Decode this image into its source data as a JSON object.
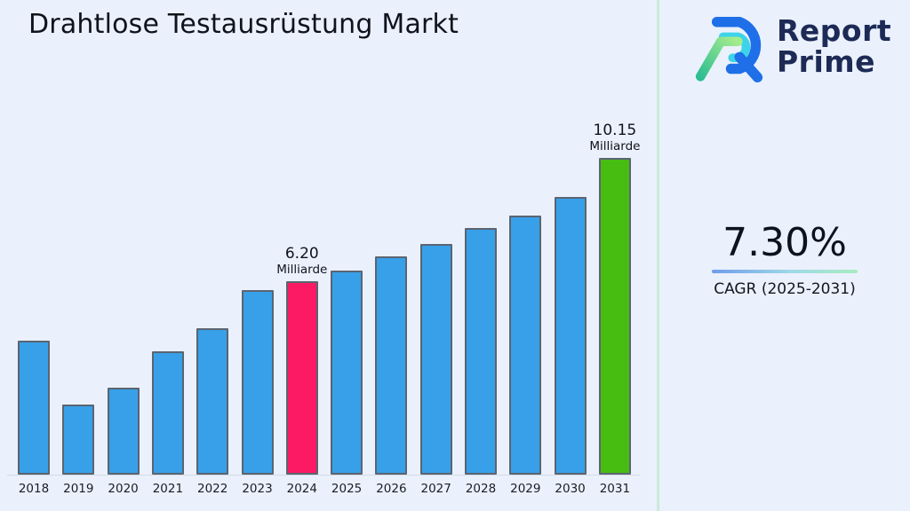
{
  "page": {
    "background": "#EAF1FC",
    "divider_color": "#CBEAD9"
  },
  "title": "Drahtlose Testausrüstung Markt",
  "brand": {
    "name_line1": "Report",
    "name_line2": "Prime",
    "text_color": "#1D2A55",
    "mark_colors": {
      "blue": "#1E6FE8",
      "cyan": "#3DD3E9",
      "green_light": "#A5EC8C",
      "green_teal": "#2EBE92"
    }
  },
  "cagr": {
    "value": "7.30%",
    "label": "CAGR (2025-2031)"
  },
  "chart_data": {
    "type": "bar",
    "title": "Drahtlose Testausrüstung Markt",
    "unit": "Milliarde",
    "categories": [
      "2018",
      "2019",
      "2020",
      "2021",
      "2022",
      "2023",
      "2024",
      "2025",
      "2026",
      "2027",
      "2028",
      "2029",
      "2030",
      "2031"
    ],
    "values": [
      4.3,
      2.25,
      2.8,
      3.95,
      4.7,
      5.9,
      6.2,
      6.55,
      7.0,
      7.4,
      7.9,
      8.3,
      8.9,
      10.15
    ],
    "labeled_points": [
      {
        "category": "2024",
        "value_label": "6.20",
        "unit_label": "Milliarde"
      },
      {
        "category": "2031",
        "value_label": "10.15",
        "unit_label": "Milliarde"
      }
    ],
    "bar_color": "#37A0E8",
    "bar_border_color": "#5B6472",
    "highlight_colors": {
      "2024": "#FB1A63",
      "2031": "#47BD12"
    },
    "xlabel": "",
    "ylabel": "",
    "ylim": [
      0,
      10.8
    ],
    "grid": false,
    "legend": false
  }
}
